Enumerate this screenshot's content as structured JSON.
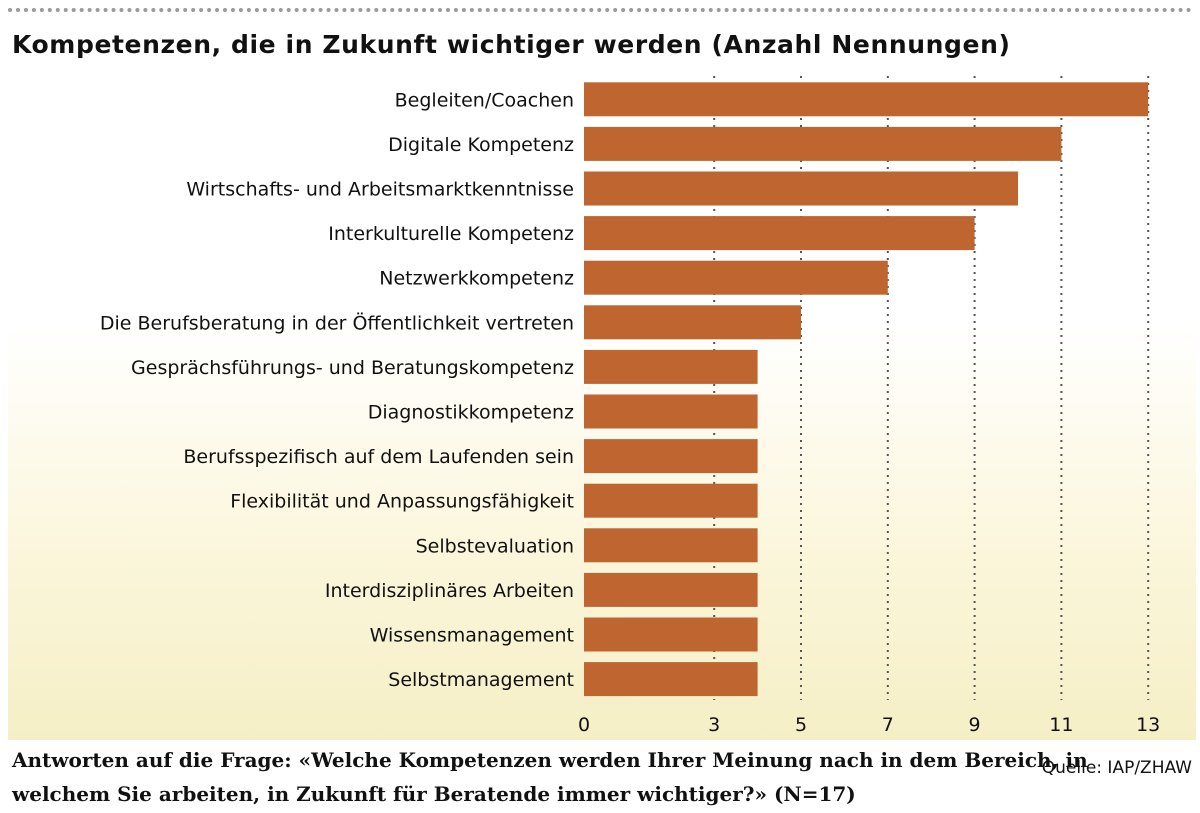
{
  "chart_data": {
    "type": "bar",
    "orientation": "horizontal",
    "title": "Kompetenzen, die in Zukunft wichtiger werden (Anzahl Nennungen)",
    "categories": [
      "Begleiten/Coachen",
      "Digitale Kompetenz",
      "Wirtschafts- und Arbeitsmarktkenntnisse",
      "Interkulturelle Kompetenz",
      "Netzwerkkompetenz",
      "Die Berufsberatung in der Öffentlichkeit vertreten",
      "Gesprächsführungs- und Beratungskompetenz",
      "Diagnostikkompetenz",
      "Berufsspezifisch auf dem Laufenden sein",
      "Flexibilität und Anpassungsfähigkeit",
      "Selbstevaluation",
      "Interdisziplinäres Arbeiten",
      "Wissensmanagement",
      "Selbstmanagement"
    ],
    "values": [
      13,
      11,
      10,
      9,
      7,
      5,
      4,
      4,
      4,
      4,
      4,
      4,
      4,
      4
    ],
    "xlim": [
      0,
      15
    ],
    "xticks": [
      0,
      3,
      5,
      7,
      9,
      11,
      13,
      15
    ],
    "grid": "vertical dotted",
    "bar_color": "#bf6530"
  },
  "caption": "Antworten auf die Frage: «Welche Kompetenzen werden Ihrer Meinung nach in dem Bereich, in welchem Sie arbeiten, in Zukunft für Beratende immer wichtiger?» (N=17)",
  "source": "Quelle: IAP/ZHAW"
}
